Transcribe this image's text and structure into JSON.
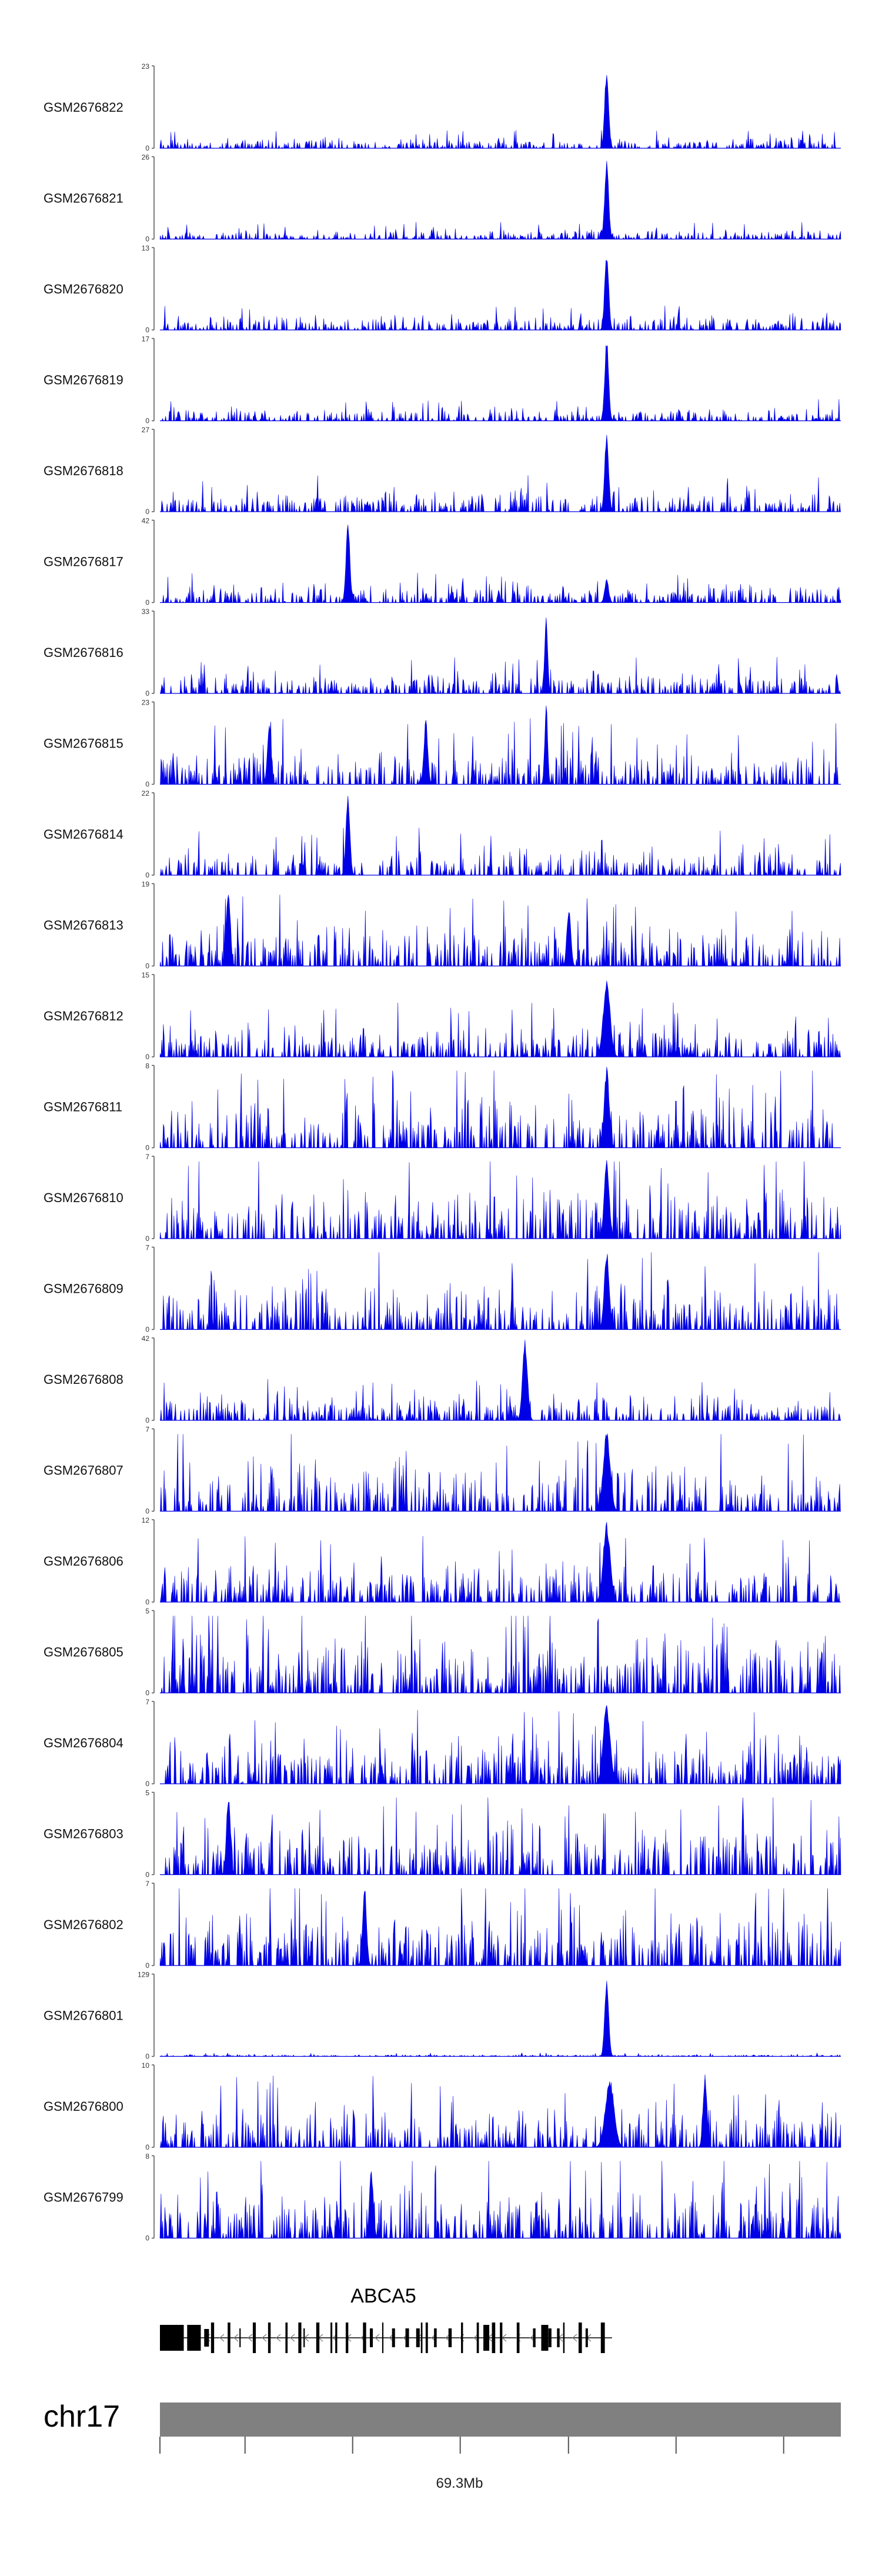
{
  "chart_data": {
    "type": "area",
    "tracks": [
      {
        "name": "GSM2676822",
        "ymax": 23,
        "ymin": 0,
        "seed": 22,
        "noise": 0.16,
        "peaks": [
          {
            "x": 0.656,
            "h": 1.0,
            "w": 0.004
          }
        ]
      },
      {
        "name": "GSM2676821",
        "ymax": 26,
        "ymin": 0,
        "seed": 21,
        "noise": 0.14,
        "peaks": [
          {
            "x": 0.656,
            "h": 1.0,
            "w": 0.004
          }
        ]
      },
      {
        "name": "GSM2676820",
        "ymax": 13,
        "ymin": 0,
        "seed": 20,
        "noise": 0.2,
        "peaks": [
          {
            "x": 0.656,
            "h": 1.0,
            "w": 0.004
          }
        ]
      },
      {
        "name": "GSM2676819",
        "ymax": 17,
        "ymin": 0,
        "seed": 19,
        "noise": 0.18,
        "peaks": [
          {
            "x": 0.656,
            "h": 1.0,
            "w": 0.004
          }
        ]
      },
      {
        "name": "GSM2676818",
        "ymax": 27,
        "ymin": 0,
        "seed": 18,
        "noise": 0.3,
        "peaks": [
          {
            "x": 0.656,
            "h": 1.0,
            "w": 0.004
          }
        ]
      },
      {
        "name": "GSM2676817",
        "ymax": 42,
        "ymin": 0,
        "seed": 17,
        "noise": 0.25,
        "peaks": [
          {
            "x": 0.275,
            "h": 1.0,
            "w": 0.004
          },
          {
            "x": 0.656,
            "h": 0.3,
            "w": 0.004
          }
        ]
      },
      {
        "name": "GSM2676816",
        "ymax": 33,
        "ymin": 0,
        "seed": 16,
        "noise": 0.3,
        "peaks": [
          {
            "x": 0.567,
            "h": 1.0,
            "w": 0.003
          }
        ]
      },
      {
        "name": "GSM2676815",
        "ymax": 23,
        "ymin": 0,
        "seed": 15,
        "noise": 0.55,
        "peaks": [
          {
            "x": 0.567,
            "h": 1.0,
            "w": 0.003
          },
          {
            "x": 0.16,
            "h": 0.75,
            "w": 0.004
          },
          {
            "x": 0.39,
            "h": 0.8,
            "w": 0.004
          }
        ]
      },
      {
        "name": "GSM2676814",
        "ymax": 22,
        "ymin": 0,
        "seed": 14,
        "noise": 0.4,
        "peaks": [
          {
            "x": 0.275,
            "h": 1.0,
            "w": 0.004
          }
        ]
      },
      {
        "name": "GSM2676813",
        "ymax": 19,
        "ymin": 0,
        "seed": 13,
        "noise": 0.6,
        "peaks": [
          {
            "x": 0.1,
            "h": 1.0,
            "w": 0.004
          },
          {
            "x": 0.6,
            "h": 0.75,
            "w": 0.004
          }
        ]
      },
      {
        "name": "GSM2676812",
        "ymax": 15,
        "ymin": 0,
        "seed": 12,
        "noise": 0.45,
        "peaks": [
          {
            "x": 0.656,
            "h": 0.95,
            "w": 0.008
          }
        ]
      },
      {
        "name": "GSM2676811",
        "ymax": 8,
        "ymin": 0,
        "seed": 11,
        "noise": 0.7,
        "peaks": [
          {
            "x": 0.656,
            "h": 1.0,
            "w": 0.006
          }
        ]
      },
      {
        "name": "GSM2676810",
        "ymax": 7,
        "ymin": 0,
        "seed": 10,
        "noise": 0.7,
        "peaks": [
          {
            "x": 0.656,
            "h": 1.0,
            "w": 0.006
          }
        ]
      },
      {
        "name": "GSM2676809",
        "ymax": 7,
        "ymin": 0,
        "seed": 9,
        "noise": 0.7,
        "peaks": [
          {
            "x": 0.656,
            "h": 1.0,
            "w": 0.006
          }
        ]
      },
      {
        "name": "GSM2676808",
        "ymax": 42,
        "ymin": 0,
        "seed": 8,
        "noise": 0.35,
        "peaks": [
          {
            "x": 0.535,
            "h": 1.0,
            "w": 0.005
          }
        ]
      },
      {
        "name": "GSM2676807",
        "ymax": 7,
        "ymin": 0,
        "seed": 7,
        "noise": 0.7,
        "peaks": [
          {
            "x": 0.656,
            "h": 1.0,
            "w": 0.008
          }
        ]
      },
      {
        "name": "GSM2676806",
        "ymax": 12,
        "ymin": 0,
        "seed": 6,
        "noise": 0.55,
        "peaks": [
          {
            "x": 0.656,
            "h": 1.0,
            "w": 0.008
          }
        ]
      },
      {
        "name": "GSM2676805",
        "ymax": 5,
        "ymin": 0,
        "seed": 5,
        "noise": 0.85,
        "peaks": []
      },
      {
        "name": "GSM2676804",
        "ymax": 7,
        "ymin": 0,
        "seed": 4,
        "noise": 0.7,
        "peaks": [
          {
            "x": 0.656,
            "h": 1.0,
            "w": 0.008
          }
        ]
      },
      {
        "name": "GSM2676803",
        "ymax": 5,
        "ymin": 0,
        "seed": 3,
        "noise": 0.7,
        "peaks": [
          {
            "x": 0.1,
            "h": 1.0,
            "w": 0.004
          }
        ]
      },
      {
        "name": "GSM2676802",
        "ymax": 7,
        "ymin": 0,
        "seed": 2,
        "noise": 0.8,
        "peaks": [
          {
            "x": 0.3,
            "h": 1.0,
            "w": 0.004
          }
        ]
      },
      {
        "name": "GSM2676801",
        "ymax": 129,
        "ymin": 0,
        "seed": 1,
        "noise": 0.03,
        "peaks": [
          {
            "x": 0.656,
            "h": 1.0,
            "w": 0.004
          }
        ]
      },
      {
        "name": "GSM2676800",
        "ymax": 10,
        "ymin": 0,
        "seed": 100,
        "noise": 0.6,
        "peaks": [
          {
            "x": 0.66,
            "h": 0.85,
            "w": 0.01
          },
          {
            "x": 0.8,
            "h": 0.9,
            "w": 0.004
          }
        ]
      },
      {
        "name": "GSM2676799",
        "ymax": 8,
        "ymin": 0,
        "seed": 99,
        "noise": 0.75,
        "peaks": [
          {
            "x": 0.31,
            "h": 0.85,
            "w": 0.004
          }
        ]
      }
    ],
    "gene": {
      "name": "ABCA5",
      "start": 0.0,
      "end": 0.664
    },
    "chromosome": {
      "name": "chr17",
      "tick_label": "69.3Mb",
      "tick_label_at": 0.44,
      "ticks": [
        0.125,
        0.283,
        0.441,
        0.6,
        0.758,
        0.916
      ]
    },
    "colors": {
      "signal": "#0000e6",
      "axis": "#555555",
      "ideogram": "#808080",
      "gene": "#000000"
    }
  }
}
